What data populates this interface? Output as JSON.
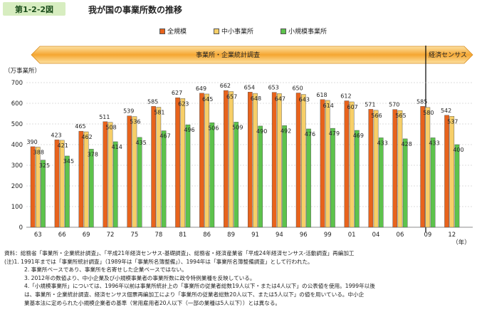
{
  "header": {
    "figure_no": "第1-2-2図",
    "title": "我が国の事業所数の推移"
  },
  "banners": {
    "left": "事業所・企業統計調査",
    "right": "経済センサス"
  },
  "colors": {
    "total": "#e8631c",
    "sme": "#f7cf68",
    "small": "#5dc34c"
  },
  "chart_data": {
    "type": "bar",
    "ylabel": "（万事業所）",
    "xlabel_unit": "（年）",
    "ylim": [
      0,
      700
    ],
    "yticks": [
      0,
      100,
      200,
      300,
      400,
      500,
      600,
      700
    ],
    "categories": [
      "63",
      "66",
      "69",
      "72",
      "75",
      "78",
      "81",
      "86",
      "89",
      "91",
      "94",
      "96",
      "99",
      "01",
      "04",
      "06",
      "09",
      "12"
    ],
    "series": [
      {
        "name": "全規模",
        "values": [
          390,
          423,
          465,
          511,
          539,
          585,
          627,
          649,
          662,
          654,
          653,
          650,
          618,
          612,
          571,
          570,
          585,
          542
        ]
      },
      {
        "name": "中小事業所",
        "values": [
          388,
          421,
          462,
          508,
          536,
          581,
          623,
          645,
          657,
          648,
          647,
          643,
          614,
          607,
          566,
          565,
          580,
          537
        ]
      },
      {
        "name": "小規模事業所",
        "values": [
          325,
          345,
          378,
          414,
          435,
          467,
          496,
          506,
          509,
          490,
          492,
          476,
          479,
          469,
          433,
          428,
          433,
          400
        ]
      }
    ]
  },
  "notes": [
    "資料：総務省「事業所・企業統計調査」、「平成21年経済センサス-基礎調査」、総務省・経済産業省「平成24年経済センサス-活動調査」再編加工",
    "(注)1. 1991年までは「事業所統計調査」（1989年は「事業所名簿整備」）、1994年は「事業所名簿整備調査」として行われた。",
    "2. 事業所ベースであり、事業所を名寄せした企業ベースではない。",
    "3. 2012年の数値より、中小企業及び小規模事業者の事業所数に政令特例業種を反映している。",
    "4.「小規模事業所」については、1996年以前は事業所統計上の「事業所の従業者総数19人以下・または4人以下」の公表値を使用。1999年以後",
    "は、事業所・企業統計調査、経済センサス個票再編加工により「事業所の従業者総数20人以下、または5人以下」の値を用いている。中小企",
    "業基本法に定められた小規模企業者の基準（常用雇用者20人以下（一部の業種は5人以下））とは異なる。"
  ]
}
